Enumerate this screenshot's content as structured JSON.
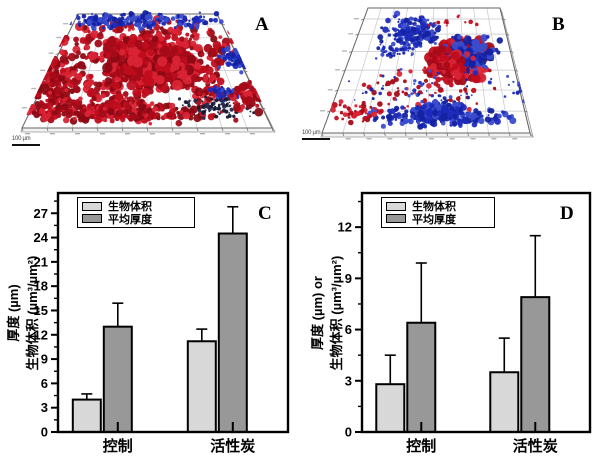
{
  "figure": {
    "background": "#ffffff",
    "panels": {
      "A": {
        "label": "A",
        "scale_bar_text": "100 µm",
        "content": "dense 3D biofilm render, mostly red biomass with blue band along far edge",
        "colors": {
          "red": "#c00d1c",
          "blue": "#1c2bbd",
          "dark": "#16172e",
          "grid": "#c6c6ce"
        }
      },
      "B": {
        "label": "B",
        "scale_bar_text": "100 µm",
        "content": "sparse 3D biofilm render, blue clusters and central red/blue colony",
        "colors": {
          "red": "#c00d1c",
          "blue": "#1c2bbd",
          "grid": "#c6c6ce"
        }
      }
    }
  },
  "chart_data": [
    {
      "type": "bar",
      "panel_label": "C",
      "categories": [
        "控制",
        "活性炭"
      ],
      "series": [
        {
          "name": "生物体积",
          "values": [
            4.0,
            11.2
          ],
          "errors_plus": [
            0.7,
            1.5
          ],
          "color": "#d8d8d8"
        },
        {
          "name": "平均厚度",
          "values": [
            13.0,
            24.5
          ],
          "errors_plus": [
            2.9,
            3.3
          ],
          "color": "#989898"
        }
      ],
      "ylabel_line1": "厚度 (µm)",
      "ylabel_line2": "生物体积 (µm³/µm²)",
      "yticks": [
        0,
        3,
        6,
        9,
        12,
        15,
        18,
        21,
        24,
        27
      ],
      "minor_tick_step": 1.5,
      "ylim": [
        0,
        29.5
      ],
      "grid": false,
      "legend_position": "top-left"
    },
    {
      "type": "bar",
      "panel_label": "D",
      "categories": [
        "控制",
        "活性炭"
      ],
      "series": [
        {
          "name": "生物体积",
          "values": [
            2.8,
            3.5
          ],
          "errors_plus": [
            1.7,
            2.0
          ],
          "color": "#d8d8d8"
        },
        {
          "name": "平均厚度",
          "values": [
            6.4,
            7.9
          ],
          "errors_plus": [
            3.5,
            3.6
          ],
          "color": "#989898"
        }
      ],
      "ylabel_line1": "厚度 (µm) or",
      "ylabel_line2": "生物体积 (µm³/µm²)",
      "yticks": [
        0,
        3,
        6,
        9,
        12
      ],
      "minor_tick_step": 1.5,
      "ylim": [
        0,
        14
      ],
      "grid": false,
      "legend_position": "top-left"
    }
  ]
}
